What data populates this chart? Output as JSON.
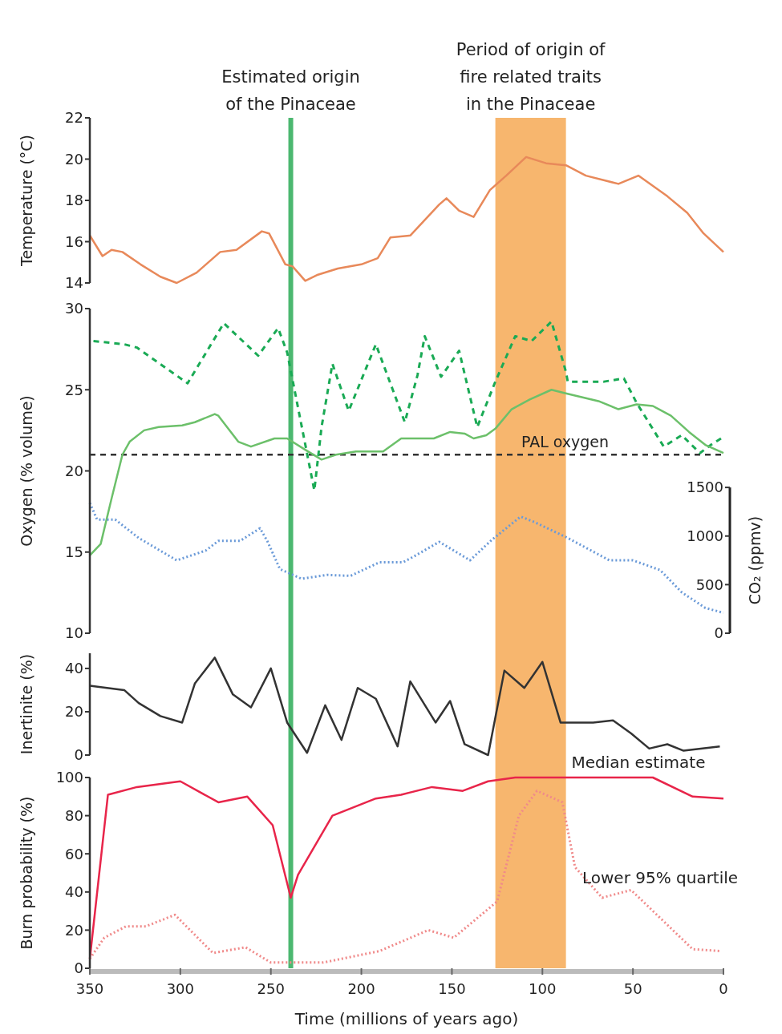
{
  "chart_data": [
    {
      "type": "line",
      "xlim": [
        350,
        0
      ],
      "ylim": [
        14,
        22
      ],
      "yticks": [
        14,
        16,
        18,
        20,
        22
      ],
      "ylabel": "Temperature (°C)",
      "tick_labels": "y",
      "grid": false,
      "marker": "none",
      "ref_lines": [
        {
          "axis": "x",
          "value": 239,
          "label": "Estimated origin of the Pinaceae",
          "color": "#4cb870"
        }
      ],
      "bands": [
        {
          "axis": "x",
          "from": 126,
          "to": 87,
          "label": "Period of origin of fire related traits in the Pinaceae",
          "color": "#f7b66e"
        }
      ],
      "series": [
        {
          "color": "#e8895a",
          "line_style": "solid",
          "x": [
            350,
            343,
            338,
            332,
            322,
            311,
            302,
            291,
            278,
            269,
            255,
            251,
            242,
            238,
            231,
            224,
            213,
            200,
            191,
            184,
            173,
            157,
            153,
            146,
            138,
            129,
            120,
            109,
            98,
            87,
            76,
            58,
            47,
            31,
            20,
            11,
            0
          ],
          "values": [
            16.3,
            15.3,
            15.6,
            15.5,
            14.9,
            14.3,
            14.0,
            14.5,
            15.5,
            15.6,
            16.5,
            16.4,
            14.9,
            14.8,
            14.1,
            14.4,
            14.7,
            14.9,
            15.2,
            16.2,
            16.3,
            17.8,
            18.1,
            17.5,
            17.2,
            18.5,
            19.2,
            20.1,
            19.8,
            19.7,
            19.2,
            18.8,
            19.2,
            18.2,
            17.4,
            16.4,
            15.5
          ]
        }
      ]
    },
    {
      "type": "line",
      "xlim": [
        350,
        0
      ],
      "ylim": [
        10,
        30
      ],
      "yticks": [
        10,
        15,
        20,
        25,
        30
      ],
      "ylabel": "Oxygen (% volume)",
      "y2lim": [
        0,
        3340
      ],
      "y2ticks": [
        0,
        500,
        1000,
        1500
      ],
      "y2label": "CO₂ (ppmv)",
      "tick_labels": "y",
      "grid": false,
      "marker": "none",
      "ref_lines": [
        {
          "axis": "x",
          "value": 239,
          "color": "#4cb870"
        },
        {
          "axis": "y",
          "value": 21,
          "label": "PAL oxygen",
          "color": "#333333",
          "line_style": "dashed"
        }
      ],
      "bands": [
        {
          "axis": "x",
          "from": 126,
          "to": 87,
          "color": "#f7b66e"
        }
      ],
      "series": [
        {
          "color": "#1aaa55",
          "line_style": "dashed",
          "x": [
            348,
            331,
            324,
            296,
            276,
            257,
            246,
            241,
            226,
            222,
            216,
            207,
            192,
            176,
            169,
            165,
            156,
            146,
            136,
            126,
            115,
            106,
            95,
            87,
            86,
            66,
            55,
            48,
            33,
            23,
            13,
            7,
            0
          ],
          "values": [
            28.0,
            27.8,
            27.6,
            25.4,
            29.1,
            27.1,
            28.8,
            27.3,
            18.8,
            22.7,
            26.6,
            23.7,
            27.8,
            23.0,
            25.9,
            28.3,
            25.8,
            27.4,
            22.7,
            25.5,
            28.3,
            28.0,
            29.2,
            26.1,
            25.5,
            25.5,
            25.7,
            24.2,
            21.5,
            22.2,
            21.1,
            21.6,
            22.1
          ]
        },
        {
          "color": "#6cc06a",
          "line_style": "solid",
          "x": [
            350,
            344,
            338,
            332,
            328,
            320,
            312,
            299,
            292,
            281,
            279,
            268,
            261,
            248,
            241,
            231,
            222,
            214,
            203,
            188,
            178,
            160,
            151,
            143,
            138,
            131,
            126,
            117,
            107,
            95,
            88,
            69,
            58,
            48,
            39,
            29,
            19,
            10,
            0
          ],
          "values": [
            14.8,
            15.5,
            18.3,
            21.0,
            21.8,
            22.5,
            22.7,
            22.8,
            23.0,
            23.5,
            23.4,
            21.8,
            21.5,
            22.0,
            22.0,
            21.3,
            20.7,
            21.0,
            21.2,
            21.2,
            22.0,
            22.0,
            22.4,
            22.3,
            22.0,
            22.2,
            22.6,
            23.8,
            24.4,
            25.0,
            24.8,
            24.3,
            23.8,
            24.1,
            24.0,
            23.4,
            22.4,
            21.6,
            21.1
          ]
        },
        {
          "color": "#6a9ad8",
          "line_style": "dotted",
          "axis": "y2",
          "x": [
            350,
            346,
            336,
            323,
            302,
            286,
            279,
            267,
            256,
            252,
            245,
            233,
            219,
            206,
            190,
            177,
            171,
            157,
            148,
            140,
            128,
            112,
            104,
            86,
            63,
            50,
            35,
            23,
            10,
            0
          ],
          "values": [
            1340,
            1170,
            1170,
            980,
            750,
            850,
            950,
            950,
            1080,
            950,
            660,
            560,
            600,
            590,
            730,
            730,
            790,
            940,
            840,
            750,
            960,
            1200,
            1140,
            980,
            750,
            750,
            650,
            420,
            260,
            210
          ]
        }
      ]
    },
    {
      "type": "line",
      "xlim": [
        350,
        0
      ],
      "ylim": [
        0,
        47
      ],
      "yticks": [
        0,
        20,
        40
      ],
      "ylabel": "Inertinite (%)",
      "tick_labels": "y",
      "grid": false,
      "marker": "none",
      "ref_lines": [
        {
          "axis": "x",
          "value": 239,
          "color": "#4cb870"
        }
      ],
      "bands": [
        {
          "axis": "x",
          "from": 126,
          "to": 87,
          "color": "#f7b66e"
        }
      ],
      "series": [
        {
          "color": "#333333",
          "line_style": "solid",
          "x": [
            350,
            331,
            323,
            311,
            299,
            292,
            281,
            271,
            261,
            250,
            241,
            230,
            220,
            211,
            202,
            192,
            180,
            173,
            159,
            151,
            143,
            130,
            121,
            110,
            100,
            90,
            72,
            61,
            51,
            41,
            31,
            22,
            2
          ],
          "values": [
            32,
            30,
            24,
            18,
            15,
            33,
            45,
            28,
            22,
            40,
            15,
            1,
            23,
            7,
            31,
            26,
            4,
            34,
            15,
            25,
            5,
            0,
            39,
            31,
            43,
            15,
            15,
            16,
            10,
            3,
            5,
            2,
            4
          ]
        }
      ]
    },
    {
      "type": "line",
      "xlim": [
        350,
        0
      ],
      "xticks": [
        350,
        300,
        250,
        200,
        150,
        100,
        50,
        0
      ],
      "ylim": [
        0,
        100
      ],
      "yticks": [
        0,
        20,
        40,
        60,
        80,
        100
      ],
      "ylabel": "Burn probability (%)",
      "xlabel": "Time (millions of years ago)",
      "grid": false,
      "marker": "none",
      "ref_lines": [
        {
          "axis": "x",
          "value": 239,
          "color": "#4cb870"
        }
      ],
      "bands": [
        {
          "axis": "x",
          "from": 126,
          "to": 87,
          "color": "#f7b66e"
        }
      ],
      "series": [
        {
          "name": "Median estimate",
          "color": "#e8254a",
          "line_style": "solid",
          "x": [
            350,
            340,
            324,
            300,
            279,
            263,
            249,
            239,
            235,
            216,
            192,
            178,
            161,
            144,
            130,
            115,
            39,
            17,
            0
          ],
          "values": [
            5,
            91,
            95,
            98,
            87,
            90,
            75,
            37,
            49,
            80,
            89,
            91,
            95,
            93,
            98,
            100,
            100,
            90,
            89
          ]
        },
        {
          "name": "Lower 95% quartile",
          "color": "#f08a8a",
          "line_style": "dotted",
          "x": [
            350,
            342,
            330,
            319,
            303,
            282,
            264,
            250,
            221,
            190,
            163,
            149,
            125,
            113,
            103,
            89,
            82,
            67,
            51,
            17,
            1
          ],
          "values": [
            5,
            16,
            22,
            22,
            28,
            8,
            11,
            3,
            3,
            9,
            20,
            16,
            35,
            80,
            93,
            87,
            53,
            37,
            41,
            10,
            9
          ]
        }
      ]
    }
  ]
}
